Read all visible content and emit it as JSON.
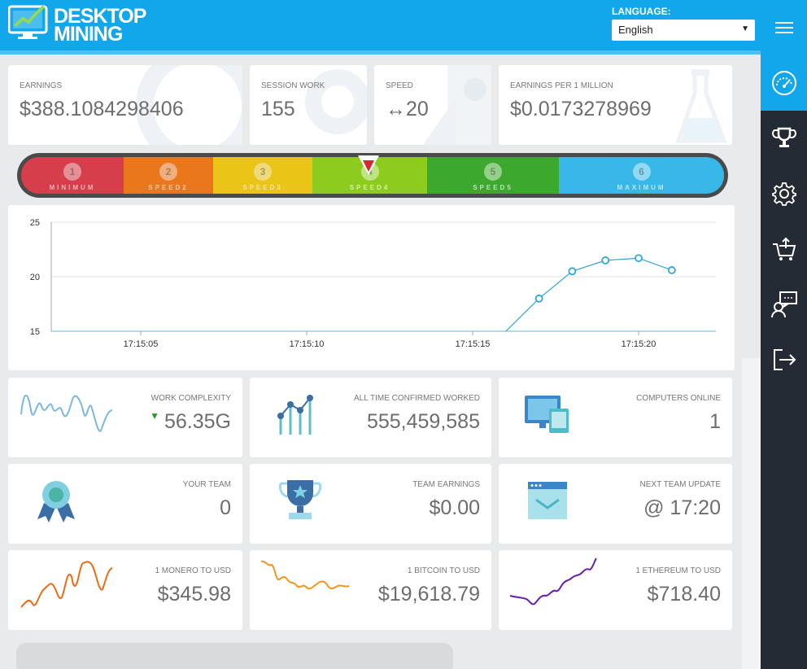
{
  "header": {
    "logo_line1": "DESKTOP",
    "logo_line2": "MINING",
    "language_label": "LANGUAGE:",
    "language_value": "English"
  },
  "sidebar": {
    "items": [
      {
        "icon": "hamburger-menu-icon"
      },
      {
        "icon": "speedometer-icon",
        "active": true
      },
      {
        "icon": "trophy-icon"
      },
      {
        "icon": "settings-gear-icon"
      },
      {
        "icon": "cart-icon"
      },
      {
        "icon": "support-chat-icon"
      },
      {
        "icon": "logout-icon"
      }
    ]
  },
  "stats_top": {
    "earnings": {
      "label": "EARNINGS",
      "value": "$388.1084298406"
    },
    "session_work": {
      "label": "SESSION WORK",
      "value": "155"
    },
    "speed": {
      "label": "SPEED",
      "value": "↔20"
    },
    "earnings_per_million": {
      "label": "EARNINGS PER 1 MILLION",
      "value": "$0.0173278969"
    }
  },
  "speed_levels": [
    {
      "num": "1",
      "name": "MINIMUM",
      "color": "#e0414f"
    },
    {
      "num": "2",
      "name": "SPEED2",
      "color": "#f57c1f"
    },
    {
      "num": "3",
      "name": "SPEED3",
      "color": "#f5cc1a"
    },
    {
      "num": "4",
      "name": "SPEED4",
      "color": "#8dcc1e"
    },
    {
      "num": "5",
      "name": "SPEED5",
      "color": "#3da82e"
    },
    {
      "num": "6",
      "name": "MAXIMUM",
      "color": "#37b8e8"
    }
  ],
  "chart_data": {
    "type": "line",
    "x": [
      "17:15:17",
      "17:15:18",
      "17:15:19",
      "17:15:20",
      "17:15:21"
    ],
    "y": [
      18,
      20.5,
      21.5,
      21.7,
      20.6
    ],
    "line_start": {
      "x": "17:15:16",
      "y": 15
    },
    "xticks": [
      "17:15:05",
      "17:15:10",
      "17:15:15",
      "17:15:20"
    ],
    "yticks": [
      "15",
      "20",
      "25"
    ],
    "ylim": [
      15,
      25
    ],
    "color": "#2fa7d8"
  },
  "tiles": {
    "work_complexity": {
      "label": "WORK COMPLEXITY",
      "value": "56.35G",
      "trend": "down"
    },
    "all_time_confirmed": {
      "label": "ALL TIME CONFIRMED WORKED",
      "value": "555,459,585"
    },
    "computers_online": {
      "label": "COMPUTERS ONLINE",
      "value": "1"
    },
    "your_team": {
      "label": "YOUR TEAM",
      "value": "0"
    },
    "team_earnings": {
      "label": "TEAM EARNINGS",
      "value": "$0.00"
    },
    "next_team_update": {
      "label": "NEXT TEAM UPDATE",
      "value": "@ 17:20"
    },
    "monero": {
      "label": "1 MONERO TO USD",
      "value": "$345.98",
      "color": "#f26a10"
    },
    "bitcoin": {
      "label": "1 BITCOIN TO USD",
      "value": "$19,618.79",
      "color": "#f7931a"
    },
    "ethereum": {
      "label": "1 ETHEREUM TO USD",
      "value": "$718.40",
      "color": "#6a1fa8"
    }
  }
}
